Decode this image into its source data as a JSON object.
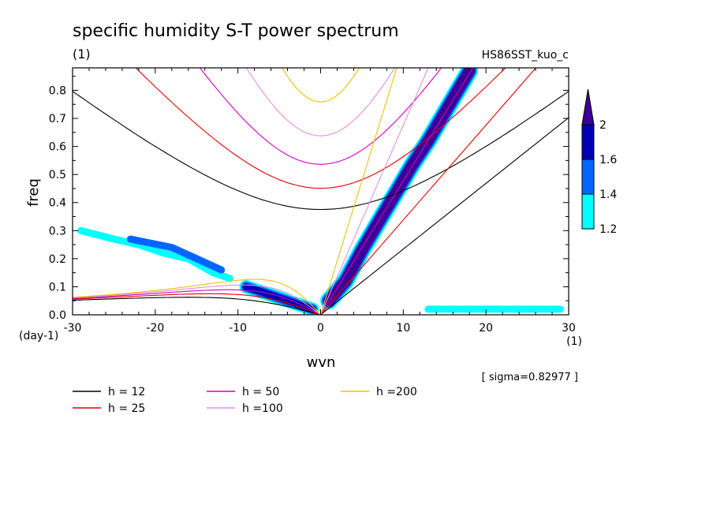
{
  "chart_data": {
    "type": "heatmap",
    "title": "specific humidity S-T power spectrum",
    "subtitle_left": "(1)",
    "subtitle_right": "HS86SST_kuo_c",
    "xlabel": "wvn",
    "ylabel": "freq",
    "x_unit": "(1)",
    "y_unit": "(day-1)",
    "xlim": [
      -30,
      30
    ],
    "ylim": [
      0,
      0.88
    ],
    "x_ticks": [
      -30,
      -20,
      -10,
      0,
      10,
      20,
      30
    ],
    "x_tick_labels": [
      "-30",
      "-20",
      "-10",
      "0",
      "10",
      "20",
      "30"
    ],
    "y_ticks": [
      0,
      0.1,
      0.2,
      0.3,
      0.4,
      0.5,
      0.6,
      0.7,
      0.8
    ],
    "y_tick_labels": [
      "0.0",
      "0.1",
      "0.2",
      "0.3",
      "0.4",
      "0.5",
      "0.6",
      "0.7",
      "0.8"
    ],
    "sigma_note": "[ sigma=0.82977 ]",
    "colorbar": {
      "levels": [
        1.2,
        1.4,
        1.6,
        2
      ],
      "labels": [
        "1.2",
        "1.4",
        "1.6",
        "2"
      ],
      "colors": [
        "#00ffff",
        "#0066ff",
        "#0000b4",
        "#3c0096"
      ]
    },
    "series": [
      {
        "name": "h = 12",
        "color": "#000000",
        "h": 12
      },
      {
        "name": "h = 25",
        "color": "#e00000",
        "h": 25
      },
      {
        "name": "h = 50",
        "color": "#d000c0",
        "h": 50
      },
      {
        "name": "h =100",
        "color": "#e090e0",
        "h": 100
      },
      {
        "name": "h =200",
        "color": "#f0c000",
        "h": 200
      }
    ],
    "bands": [
      {
        "level": 2,
        "points": [
          [
            1,
            0.05
          ],
          [
            3,
            0.12
          ],
          [
            5,
            0.23
          ],
          [
            7,
            0.33
          ],
          [
            9,
            0.43
          ],
          [
            11,
            0.53
          ],
          [
            13,
            0.62
          ],
          [
            15,
            0.72
          ],
          [
            17,
            0.82
          ],
          [
            18,
            0.87
          ]
        ]
      },
      {
        "level": 1.6,
        "points": [
          [
            -9,
            0.1
          ],
          [
            -7,
            0.08
          ],
          [
            -5,
            0.06
          ],
          [
            -3,
            0.04
          ],
          [
            -1,
            0.02
          ]
        ]
      },
      {
        "level": 1.2,
        "points": [
          [
            -29,
            0.3
          ],
          [
            -25,
            0.27
          ],
          [
            -22,
            0.25
          ],
          [
            -19,
            0.22
          ],
          [
            -16,
            0.2
          ],
          [
            -13,
            0.15
          ],
          [
            -11,
            0.13
          ]
        ]
      },
      {
        "level": 1.4,
        "points": [
          [
            -23,
            0.27
          ],
          [
            -18,
            0.24
          ],
          [
            -15,
            0.2
          ],
          [
            -12,
            0.16
          ]
        ]
      },
      {
        "level": 1.2,
        "points": [
          [
            13,
            0.02
          ],
          [
            17,
            0.02
          ],
          [
            21,
            0.02
          ],
          [
            25,
            0.02
          ],
          [
            29,
            0.02
          ]
        ]
      }
    ]
  }
}
